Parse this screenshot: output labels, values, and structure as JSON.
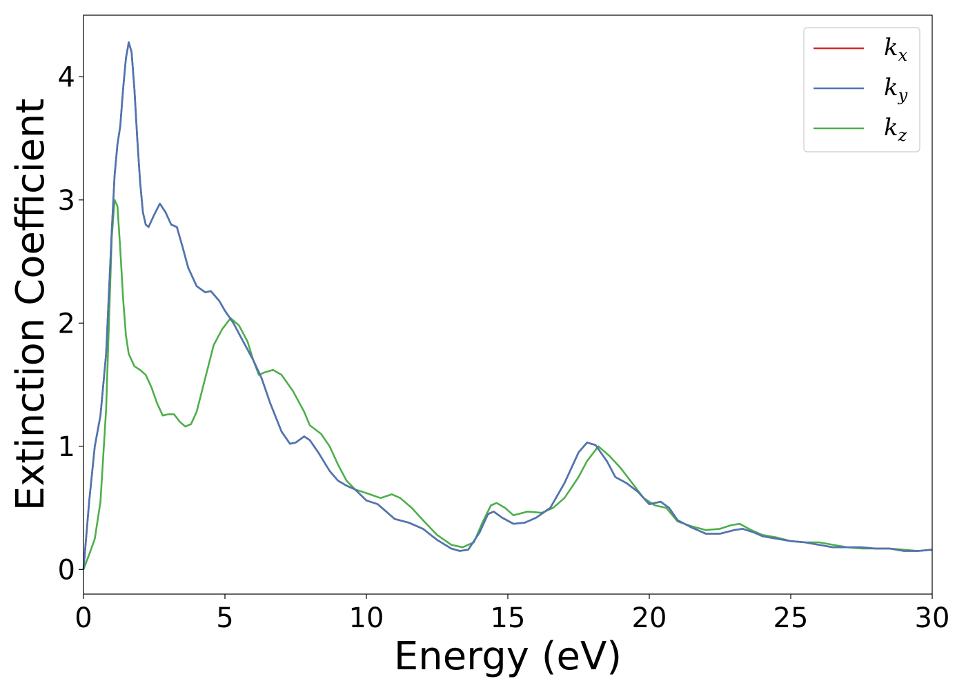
{
  "chart_data": {
    "type": "line",
    "title": "",
    "xlabel": "Energy (eV)",
    "ylabel": "Extinction Coefficient",
    "xlim": [
      0,
      30
    ],
    "ylim": [
      -0.2,
      4.5
    ],
    "xticks": [
      0,
      5,
      10,
      15,
      20,
      25,
      30
    ],
    "yticks": [
      0,
      1,
      2,
      3,
      4
    ],
    "grid": false,
    "legend_position": "top-right",
    "series": [
      {
        "name": "k_x",
        "legend_base": "k",
        "legend_sub": "x",
        "color": "#d62728",
        "points": [
          [
            0,
            0.0
          ],
          [
            0.2,
            0.55
          ],
          [
            0.4,
            1.0
          ],
          [
            0.6,
            1.25
          ],
          [
            0.8,
            1.75
          ],
          [
            1.0,
            2.75
          ],
          [
            1.1,
            3.2
          ],
          [
            1.2,
            3.45
          ],
          [
            1.3,
            3.6
          ],
          [
            1.4,
            3.9
          ],
          [
            1.5,
            4.15
          ],
          [
            1.6,
            4.28
          ],
          [
            1.7,
            4.2
          ],
          [
            1.8,
            3.9
          ],
          [
            1.9,
            3.5
          ],
          [
            2.0,
            3.15
          ],
          [
            2.1,
            2.9
          ],
          [
            2.2,
            2.8
          ],
          [
            2.3,
            2.78
          ],
          [
            2.5,
            2.88
          ],
          [
            2.7,
            2.97
          ],
          [
            2.9,
            2.9
          ],
          [
            3.1,
            2.8
          ],
          [
            3.3,
            2.78
          ],
          [
            3.5,
            2.62
          ],
          [
            3.7,
            2.45
          ],
          [
            4.0,
            2.3
          ],
          [
            4.3,
            2.25
          ],
          [
            4.5,
            2.26
          ],
          [
            4.8,
            2.18
          ],
          [
            5.0,
            2.1
          ],
          [
            5.3,
            2.0
          ],
          [
            5.6,
            1.87
          ],
          [
            6.0,
            1.7
          ],
          [
            6.3,
            1.55
          ],
          [
            6.6,
            1.35
          ],
          [
            7.0,
            1.12
          ],
          [
            7.3,
            1.02
          ],
          [
            7.5,
            1.03
          ],
          [
            7.8,
            1.08
          ],
          [
            8.0,
            1.05
          ],
          [
            8.3,
            0.95
          ],
          [
            8.7,
            0.8
          ],
          [
            9.0,
            0.72
          ],
          [
            9.3,
            0.68
          ],
          [
            9.6,
            0.65
          ],
          [
            10.0,
            0.56
          ],
          [
            10.4,
            0.53
          ],
          [
            10.7,
            0.47
          ],
          [
            11.0,
            0.41
          ],
          [
            11.5,
            0.38
          ],
          [
            12.0,
            0.33
          ],
          [
            12.5,
            0.24
          ],
          [
            13.0,
            0.17
          ],
          [
            13.3,
            0.15
          ],
          [
            13.6,
            0.16
          ],
          [
            14.0,
            0.3
          ],
          [
            14.3,
            0.45
          ],
          [
            14.5,
            0.47
          ],
          [
            14.8,
            0.42
          ],
          [
            15.2,
            0.37
          ],
          [
            15.6,
            0.38
          ],
          [
            16.0,
            0.42
          ],
          [
            16.5,
            0.5
          ],
          [
            17.0,
            0.7
          ],
          [
            17.5,
            0.95
          ],
          [
            17.8,
            1.03
          ],
          [
            18.1,
            1.01
          ],
          [
            18.5,
            0.88
          ],
          [
            18.8,
            0.75
          ],
          [
            19.2,
            0.7
          ],
          [
            19.6,
            0.63
          ],
          [
            20.0,
            0.53
          ],
          [
            20.4,
            0.55
          ],
          [
            20.7,
            0.5
          ],
          [
            21.0,
            0.4
          ],
          [
            21.5,
            0.34
          ],
          [
            22.0,
            0.29
          ],
          [
            22.5,
            0.29
          ],
          [
            23.0,
            0.32
          ],
          [
            23.3,
            0.33
          ],
          [
            23.7,
            0.3
          ],
          [
            24.0,
            0.27
          ],
          [
            24.5,
            0.25
          ],
          [
            25.0,
            0.23
          ],
          [
            25.5,
            0.22
          ],
          [
            26.0,
            0.2
          ],
          [
            26.5,
            0.18
          ],
          [
            27.0,
            0.18
          ],
          [
            27.5,
            0.18
          ],
          [
            28.0,
            0.17
          ],
          [
            28.5,
            0.17
          ],
          [
            29.0,
            0.15
          ],
          [
            29.5,
            0.15
          ],
          [
            30.0,
            0.16
          ]
        ]
      },
      {
        "name": "k_y",
        "legend_base": "k",
        "legend_sub": "y",
        "color": "#4a77b4",
        "points": [
          [
            0,
            0.0
          ],
          [
            0.2,
            0.55
          ],
          [
            0.4,
            1.0
          ],
          [
            0.6,
            1.25
          ],
          [
            0.8,
            1.75
          ],
          [
            1.0,
            2.75
          ],
          [
            1.1,
            3.2
          ],
          [
            1.2,
            3.45
          ],
          [
            1.3,
            3.6
          ],
          [
            1.4,
            3.9
          ],
          [
            1.5,
            4.15
          ],
          [
            1.6,
            4.28
          ],
          [
            1.7,
            4.2
          ],
          [
            1.8,
            3.9
          ],
          [
            1.9,
            3.5
          ],
          [
            2.0,
            3.15
          ],
          [
            2.1,
            2.9
          ],
          [
            2.2,
            2.8
          ],
          [
            2.3,
            2.78
          ],
          [
            2.5,
            2.88
          ],
          [
            2.7,
            2.97
          ],
          [
            2.9,
            2.9
          ],
          [
            3.1,
            2.8
          ],
          [
            3.3,
            2.78
          ],
          [
            3.5,
            2.62
          ],
          [
            3.7,
            2.45
          ],
          [
            4.0,
            2.3
          ],
          [
            4.3,
            2.25
          ],
          [
            4.5,
            2.26
          ],
          [
            4.8,
            2.18
          ],
          [
            5.0,
            2.1
          ],
          [
            5.3,
            2.0
          ],
          [
            5.6,
            1.87
          ],
          [
            6.0,
            1.7
          ],
          [
            6.3,
            1.55
          ],
          [
            6.6,
            1.35
          ],
          [
            7.0,
            1.12
          ],
          [
            7.3,
            1.02
          ],
          [
            7.5,
            1.03
          ],
          [
            7.8,
            1.08
          ],
          [
            8.0,
            1.05
          ],
          [
            8.3,
            0.95
          ],
          [
            8.7,
            0.8
          ],
          [
            9.0,
            0.72
          ],
          [
            9.3,
            0.68
          ],
          [
            9.6,
            0.65
          ],
          [
            10.0,
            0.56
          ],
          [
            10.4,
            0.53
          ],
          [
            10.7,
            0.47
          ],
          [
            11.0,
            0.41
          ],
          [
            11.5,
            0.38
          ],
          [
            12.0,
            0.33
          ],
          [
            12.5,
            0.24
          ],
          [
            13.0,
            0.17
          ],
          [
            13.3,
            0.15
          ],
          [
            13.6,
            0.16
          ],
          [
            14.0,
            0.3
          ],
          [
            14.3,
            0.45
          ],
          [
            14.5,
            0.47
          ],
          [
            14.8,
            0.42
          ],
          [
            15.2,
            0.37
          ],
          [
            15.6,
            0.38
          ],
          [
            16.0,
            0.42
          ],
          [
            16.5,
            0.5
          ],
          [
            17.0,
            0.7
          ],
          [
            17.5,
            0.95
          ],
          [
            17.8,
            1.03
          ],
          [
            18.1,
            1.01
          ],
          [
            18.5,
            0.88
          ],
          [
            18.8,
            0.75
          ],
          [
            19.2,
            0.7
          ],
          [
            19.6,
            0.63
          ],
          [
            20.0,
            0.53
          ],
          [
            20.4,
            0.55
          ],
          [
            20.7,
            0.5
          ],
          [
            21.0,
            0.4
          ],
          [
            21.5,
            0.34
          ],
          [
            22.0,
            0.29
          ],
          [
            22.5,
            0.29
          ],
          [
            23.0,
            0.32
          ],
          [
            23.3,
            0.33
          ],
          [
            23.7,
            0.3
          ],
          [
            24.0,
            0.27
          ],
          [
            24.5,
            0.25
          ],
          [
            25.0,
            0.23
          ],
          [
            25.5,
            0.22
          ],
          [
            26.0,
            0.2
          ],
          [
            26.5,
            0.18
          ],
          [
            27.0,
            0.18
          ],
          [
            27.5,
            0.18
          ],
          [
            28.0,
            0.17
          ],
          [
            28.5,
            0.17
          ],
          [
            29.0,
            0.15
          ],
          [
            29.5,
            0.15
          ],
          [
            30.0,
            0.16
          ]
        ]
      },
      {
        "name": "k_z",
        "legend_base": "k",
        "legend_sub": "z",
        "color": "#4daf4a",
        "points": [
          [
            0,
            0.0
          ],
          [
            0.2,
            0.12
          ],
          [
            0.4,
            0.25
          ],
          [
            0.6,
            0.55
          ],
          [
            0.8,
            1.3
          ],
          [
            0.9,
            2.0
          ],
          [
            1.0,
            2.7
          ],
          [
            1.1,
            3.0
          ],
          [
            1.2,
            2.95
          ],
          [
            1.3,
            2.6
          ],
          [
            1.4,
            2.2
          ],
          [
            1.5,
            1.9
          ],
          [
            1.6,
            1.75
          ],
          [
            1.8,
            1.65
          ],
          [
            2.0,
            1.62
          ],
          [
            2.2,
            1.58
          ],
          [
            2.4,
            1.48
          ],
          [
            2.6,
            1.35
          ],
          [
            2.8,
            1.25
          ],
          [
            3.0,
            1.26
          ],
          [
            3.2,
            1.26
          ],
          [
            3.4,
            1.2
          ],
          [
            3.6,
            1.16
          ],
          [
            3.8,
            1.18
          ],
          [
            4.0,
            1.28
          ],
          [
            4.3,
            1.55
          ],
          [
            4.6,
            1.82
          ],
          [
            4.9,
            1.95
          ],
          [
            5.2,
            2.04
          ],
          [
            5.5,
            1.98
          ],
          [
            5.8,
            1.85
          ],
          [
            6.0,
            1.7
          ],
          [
            6.2,
            1.58
          ],
          [
            6.4,
            1.6
          ],
          [
            6.7,
            1.62
          ],
          [
            7.0,
            1.58
          ],
          [
            7.4,
            1.45
          ],
          [
            7.8,
            1.28
          ],
          [
            8.0,
            1.17
          ],
          [
            8.4,
            1.1
          ],
          [
            8.7,
            1.0
          ],
          [
            9.0,
            0.85
          ],
          [
            9.3,
            0.72
          ],
          [
            9.6,
            0.65
          ],
          [
            10.0,
            0.62
          ],
          [
            10.5,
            0.58
          ],
          [
            10.9,
            0.61
          ],
          [
            11.2,
            0.58
          ],
          [
            11.6,
            0.5
          ],
          [
            12.0,
            0.4
          ],
          [
            12.5,
            0.28
          ],
          [
            13.0,
            0.2
          ],
          [
            13.4,
            0.18
          ],
          [
            13.8,
            0.22
          ],
          [
            14.1,
            0.38
          ],
          [
            14.4,
            0.52
          ],
          [
            14.6,
            0.54
          ],
          [
            14.9,
            0.5
          ],
          [
            15.2,
            0.44
          ],
          [
            15.7,
            0.47
          ],
          [
            16.2,
            0.46
          ],
          [
            16.6,
            0.5
          ],
          [
            17.0,
            0.58
          ],
          [
            17.5,
            0.75
          ],
          [
            17.8,
            0.88
          ],
          [
            18.2,
            1.0
          ],
          [
            18.6,
            0.92
          ],
          [
            19.0,
            0.82
          ],
          [
            19.4,
            0.7
          ],
          [
            19.8,
            0.58
          ],
          [
            20.2,
            0.52
          ],
          [
            20.6,
            0.5
          ],
          [
            21.0,
            0.39
          ],
          [
            21.5,
            0.35
          ],
          [
            22.0,
            0.32
          ],
          [
            22.5,
            0.33
          ],
          [
            22.9,
            0.36
          ],
          [
            23.2,
            0.37
          ],
          [
            23.6,
            0.32
          ],
          [
            24.0,
            0.28
          ],
          [
            24.5,
            0.26
          ],
          [
            25.0,
            0.23
          ],
          [
            25.5,
            0.22
          ],
          [
            26.0,
            0.22
          ],
          [
            26.5,
            0.2
          ],
          [
            27.0,
            0.18
          ],
          [
            27.5,
            0.17
          ],
          [
            28.0,
            0.17
          ],
          [
            28.5,
            0.17
          ],
          [
            29.0,
            0.16
          ],
          [
            29.5,
            0.15
          ],
          [
            30.0,
            0.16
          ]
        ]
      }
    ]
  }
}
